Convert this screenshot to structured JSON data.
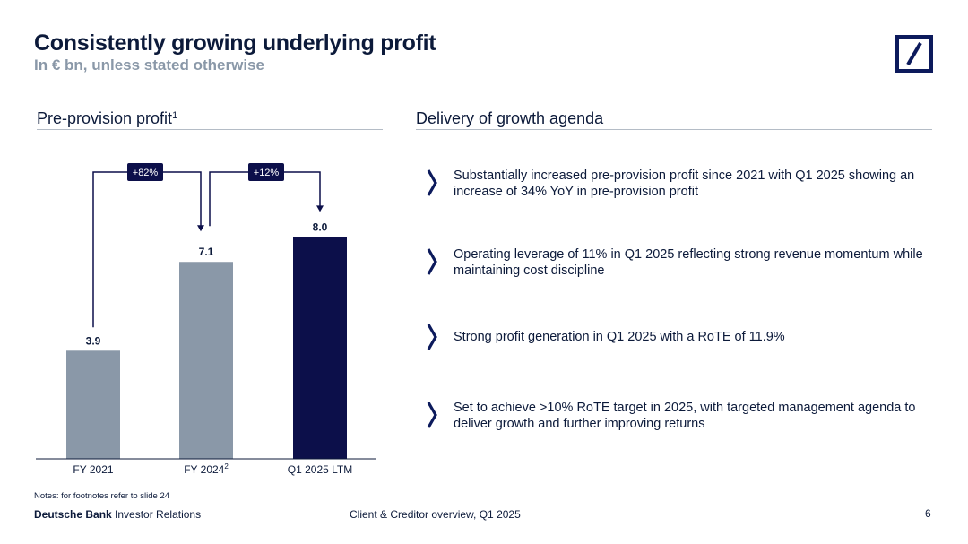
{
  "header": {
    "title": "Consistently growing underlying profit",
    "subtitle": "In € bn, unless stated otherwise"
  },
  "left_section": {
    "heading": "Pre-provision profit",
    "heading_sup": "1"
  },
  "right_section": {
    "heading": "Delivery of growth agenda"
  },
  "chart_data": {
    "type": "bar",
    "title": "Pre-provision profit",
    "categories": [
      "FY 2021",
      "FY 2024",
      "Q1 2025 LTM"
    ],
    "category_sups": [
      "",
      "2",
      ""
    ],
    "values": [
      3.9,
      7.1,
      8.0
    ],
    "value_labels": [
      "3.9",
      "7.1",
      "8.0"
    ],
    "bar_colors": [
      "#8a98a8",
      "#8a98a8",
      "#0c0f4a"
    ],
    "ylim": [
      0,
      8.4
    ],
    "xlabel": "",
    "ylabel": "",
    "annotations": [
      {
        "from": "FY 2021",
        "to": "FY 2024",
        "label": "+82%"
      },
      {
        "from": "FY 2024",
        "to": "Q1 2025 LTM",
        "label": "+12%"
      }
    ]
  },
  "bullets": [
    {
      "text": "Substantially increased pre-provision profit since 2021 with Q1 2025 showing an increase of 34% YoY in pre-provision profit"
    },
    {
      "text": " Operating leverage of 11% in Q1 2025 reflecting strong revenue momentum while maintaining cost discipline"
    },
    {
      "text": "Strong profit generation in Q1 2025 with a RoTE of 11.9%"
    },
    {
      "text": "Set to achieve >10% RoTE target in 2025, with targeted management agenda to deliver growth and further improving returns"
    }
  ],
  "footer": {
    "notes": "Notes: for footnotes refer to slide 24",
    "brand_bold": "Deutsche Bank",
    "brand_rest": " Investor Relations",
    "center": "Client & Creditor overview, Q1 2025",
    "page": "6"
  },
  "colors": {
    "navy": "#0c0f4a",
    "grey_bar": "#8a98a8",
    "text": "#0c1a3a"
  }
}
